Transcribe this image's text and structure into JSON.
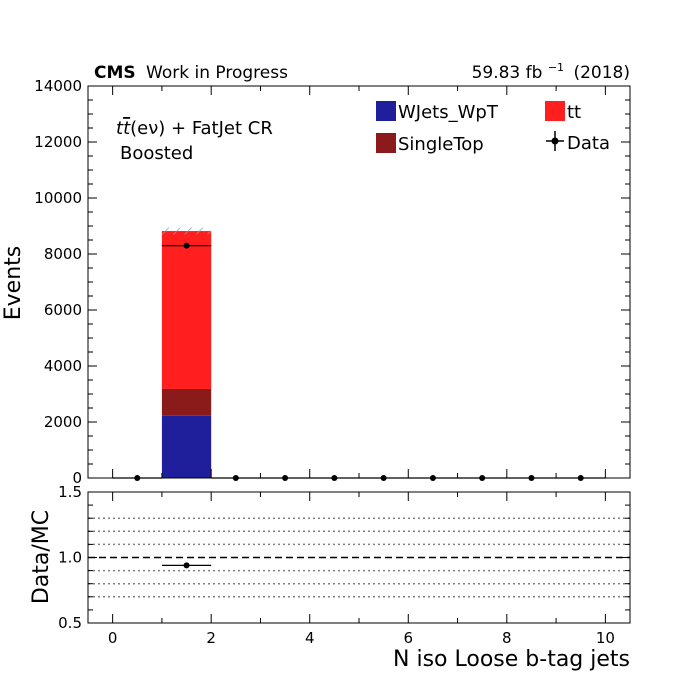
{
  "header": {
    "experiment": "CMS",
    "status": "Work in Progress",
    "lumi_value": "59.83 fb",
    "lumi_exponent": "−1",
    "year": "(2018)"
  },
  "region": {
    "line1_prefix": "t",
    "line1_bar_t": "t",
    "line1_rest": "(eν) + FatJet CR",
    "line2": "Boosted"
  },
  "colors": {
    "wjets": "#1f1f9b",
    "singletop": "#8b1a1a",
    "tt": "#ff1f1f",
    "data": "#000000",
    "ratio_grid": "#808080"
  },
  "chart_data": [
    {
      "type": "bar",
      "stacked": true,
      "ylabel": "Events",
      "xlim": [
        -0.5,
        10.5
      ],
      "ylim": [
        0,
        14000
      ],
      "yticks": [
        0,
        2000,
        4000,
        6000,
        8000,
        10000,
        12000,
        14000
      ],
      "xticks": [
        0,
        2,
        4,
        6,
        8,
        10
      ],
      "bin_edges": [
        0,
        1,
        2,
        3,
        4,
        5,
        6,
        7,
        8,
        9,
        10
      ],
      "series": [
        {
          "name": "WJets_WpT",
          "values": [
            0,
            2220,
            0,
            0,
            0,
            0,
            0,
            0,
            0,
            0
          ]
        },
        {
          "name": "SingleTop",
          "values": [
            0,
            960,
            0,
            0,
            0,
            0,
            0,
            0,
            0,
            0
          ]
        },
        {
          "name": "tt",
          "values": [
            0,
            5640,
            0,
            0,
            0,
            0,
            0,
            0,
            0,
            0
          ]
        }
      ],
      "mc_uncertainty": [
        {
          "bin": [
            1,
            2
          ],
          "low": 8700,
          "high": 8940
        }
      ],
      "data": {
        "name": "Data",
        "x": [
          0.5,
          1.5,
          2.5,
          3.5,
          4.5,
          5.5,
          6.5,
          7.5,
          8.5,
          9.5
        ],
        "y": [
          0,
          8300,
          0,
          0,
          0,
          0,
          0,
          0,
          0,
          0
        ],
        "xerr": 0.5
      },
      "legend": {
        "placement": "top-right",
        "entries": [
          {
            "label": "WJets_WpT",
            "kind": "box",
            "color": "#1f1f9b"
          },
          {
            "label": "tt",
            "kind": "box",
            "color": "#ff1f1f"
          },
          {
            "label": "SingleTop",
            "kind": "box",
            "color": "#8b1a1a"
          },
          {
            "label": "Data",
            "kind": "marker",
            "color": "#000000"
          }
        ]
      }
    },
    {
      "type": "scatter",
      "xlabel": "N iso Loose b-tag jets",
      "ylabel": "Data/MC",
      "xlim": [
        -0.5,
        10.5
      ],
      "ylim": [
        0.5,
        1.5
      ],
      "yticks": [
        0.5,
        1.0,
        1.5
      ],
      "ytick_labels": [
        "0.5",
        "1.0",
        "1.5"
      ],
      "xticks": [
        0,
        2,
        4,
        6,
        8,
        10
      ],
      "dotted_lines": [
        0.7,
        0.8,
        0.9,
        1.1,
        1.2,
        1.3
      ],
      "dashed_line": 1.0,
      "points": [
        {
          "x": 1.5,
          "y": 0.94,
          "xerr": 0.5
        }
      ]
    }
  ]
}
